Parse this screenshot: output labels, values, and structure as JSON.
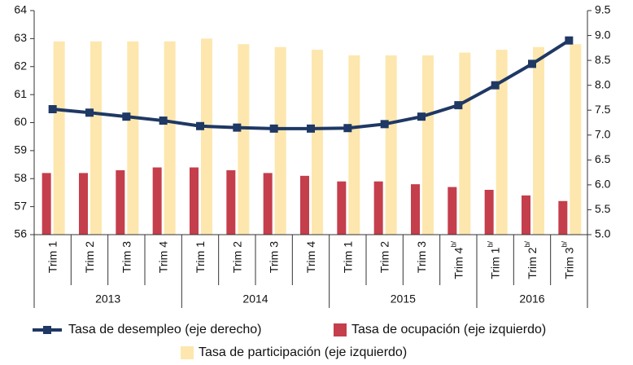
{
  "chart_data": {
    "type": "bar",
    "categories": [
      "Trim 1",
      "Trim 2",
      "Trim 3",
      "Trim 4",
      "Trim 1",
      "Trim 2",
      "Trim 3",
      "Trim 4",
      "Trim 1",
      "Trim 2",
      "Trim 3",
      "Trim 4",
      "Trim 1",
      "Trim 2",
      "Trim 3"
    ],
    "category_notes": [
      null,
      null,
      null,
      null,
      null,
      null,
      null,
      null,
      null,
      null,
      null,
      "b/",
      "b/",
      "b/",
      "b/"
    ],
    "groups": [
      {
        "label": "2013",
        "count": 4
      },
      {
        "label": "2014",
        "count": 4
      },
      {
        "label": "2015",
        "count": 4
      },
      {
        "label": "2016",
        "count": 3
      }
    ],
    "series": [
      {
        "name": "Tasa de desempleo (eje derecho)",
        "type": "line",
        "axis": "y2",
        "color": "#1f3864",
        "values": [
          7.52,
          7.45,
          7.37,
          7.29,
          7.18,
          7.15,
          7.13,
          7.13,
          7.14,
          7.22,
          7.37,
          7.6,
          8.0,
          8.43,
          8.9
        ]
      },
      {
        "name": "Tasa de ocupación (eje izquierdo)",
        "type": "bar",
        "color": "#c43e4c",
        "values": [
          58.2,
          58.2,
          58.3,
          58.4,
          58.4,
          58.3,
          58.2,
          58.1,
          57.9,
          57.9,
          57.8,
          57.7,
          57.6,
          57.4,
          57.2
        ]
      },
      {
        "name": "Tasa de participación (eje izquierdo)",
        "type": "bar",
        "color": "#fde7ae",
        "values": [
          62.9,
          62.9,
          62.9,
          62.9,
          63.0,
          62.8,
          62.7,
          62.6,
          62.4,
          62.4,
          62.4,
          62.5,
          62.6,
          62.7,
          62.8
        ]
      }
    ],
    "ylim": [
      56,
      64
    ],
    "yticks": [
      56,
      57,
      58,
      59,
      60,
      61,
      62,
      63,
      64
    ],
    "y2lim": [
      5,
      9.5
    ],
    "y2ticks": [
      {
        "value": 5,
        "label": "5.0"
      },
      5.5,
      {
        "value": 6,
        "label": "6.0"
      },
      6.5,
      {
        "value": 7,
        "label": "7.0"
      },
      7.5,
      {
        "value": 8,
        "label": "8.0"
      },
      8.5,
      {
        "value": 9,
        "label": "9.0"
      },
      9.5
    ]
  }
}
